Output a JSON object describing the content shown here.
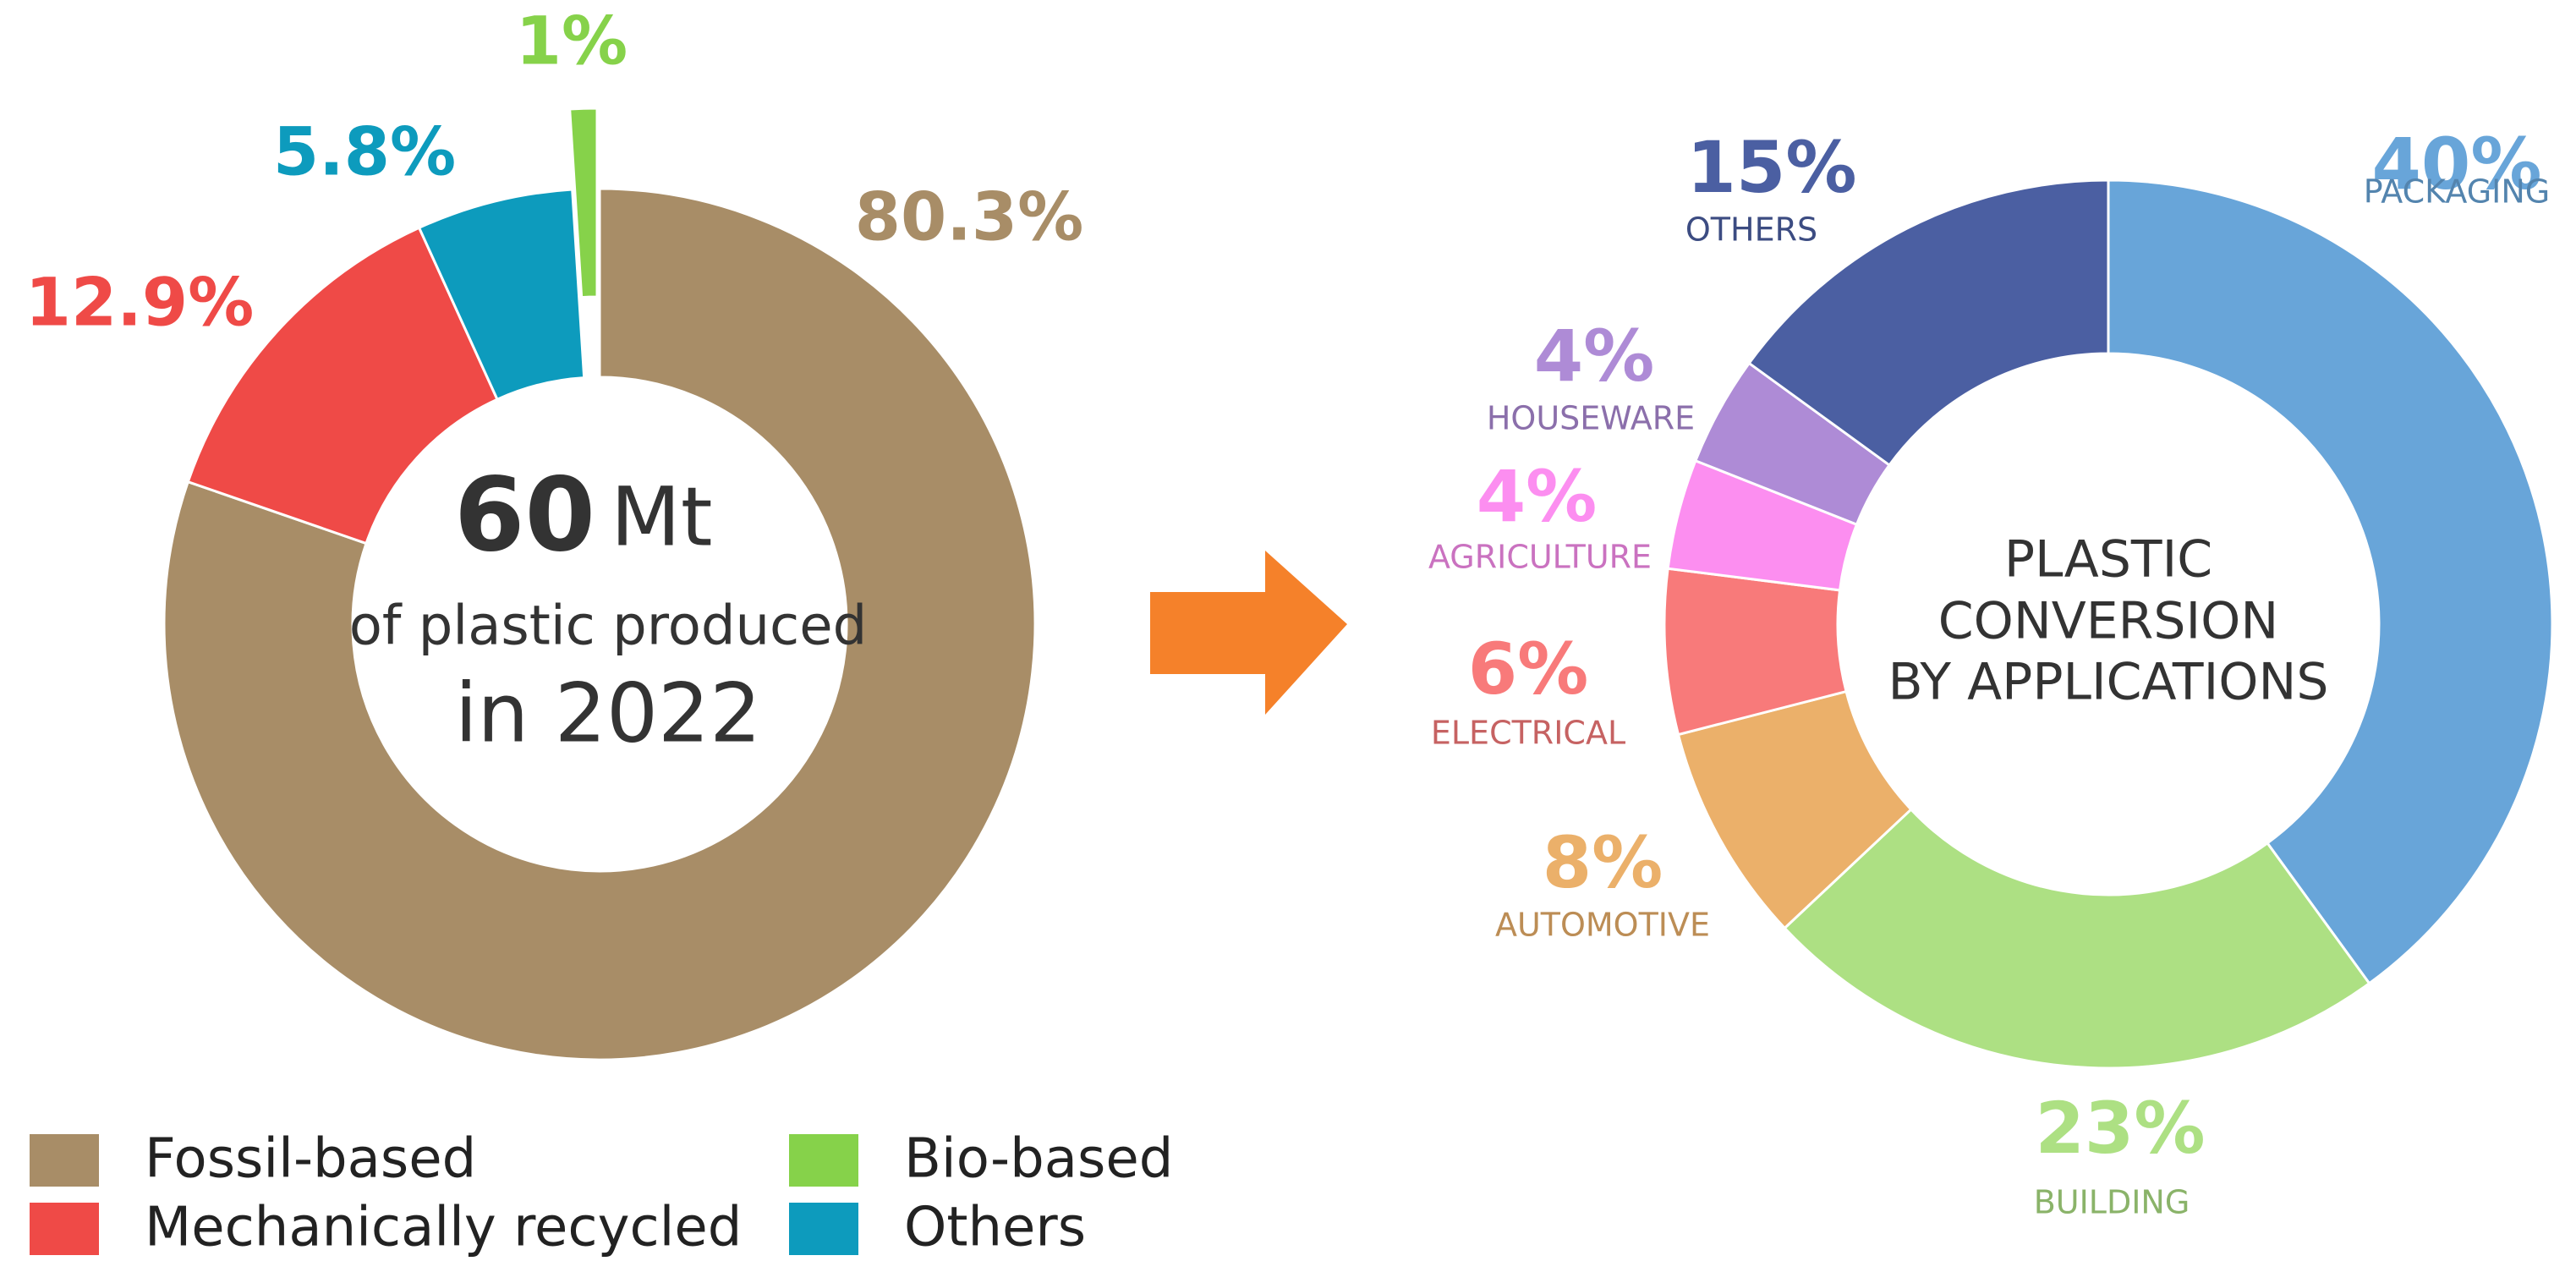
{
  "chart_data": [
    {
      "type": "donut",
      "center_text": [
        "60",
        "Mt",
        "of plastic produced",
        "in 2022"
      ],
      "categories": [
        "Fossil-based",
        "Mechanically recycled",
        "Others",
        "Bio-based"
      ],
      "values": [
        80.3,
        12.9,
        5.8,
        1
      ],
      "value_labels": [
        "80.3%",
        "12.9%",
        "5.8%",
        "1%"
      ],
      "colors": [
        "#a88d67",
        "#ef4a47",
        "#0d9bbd",
        "#86d24a"
      ],
      "exploded": [
        false,
        false,
        false,
        true
      ],
      "legend": true
    },
    {
      "type": "donut",
      "center_text": [
        "PLASTIC",
        "CONVERSION",
        "BY APPLICATIONS"
      ],
      "categories": [
        "PACKAGING",
        "BUILDING",
        "AUTOMOTIVE",
        "ELECTRICAL",
        "AGRICULTURE",
        "HOUSEWARE",
        "OTHERS"
      ],
      "values": [
        40,
        23,
        8,
        6,
        4,
        4,
        15
      ],
      "value_labels": [
        "40%",
        "23%",
        "8%",
        "6%",
        "4%",
        "4%",
        "15%"
      ],
      "colors": [
        "#68a5d9",
        "#ade083",
        "#ebb06a",
        "#f87a7a",
        "#fc8ef0",
        "#ae8bd6",
        "#4b5fa2"
      ],
      "exploded": [
        false,
        false,
        false,
        false,
        false,
        false,
        false
      ],
      "legend": false
    }
  ]
}
